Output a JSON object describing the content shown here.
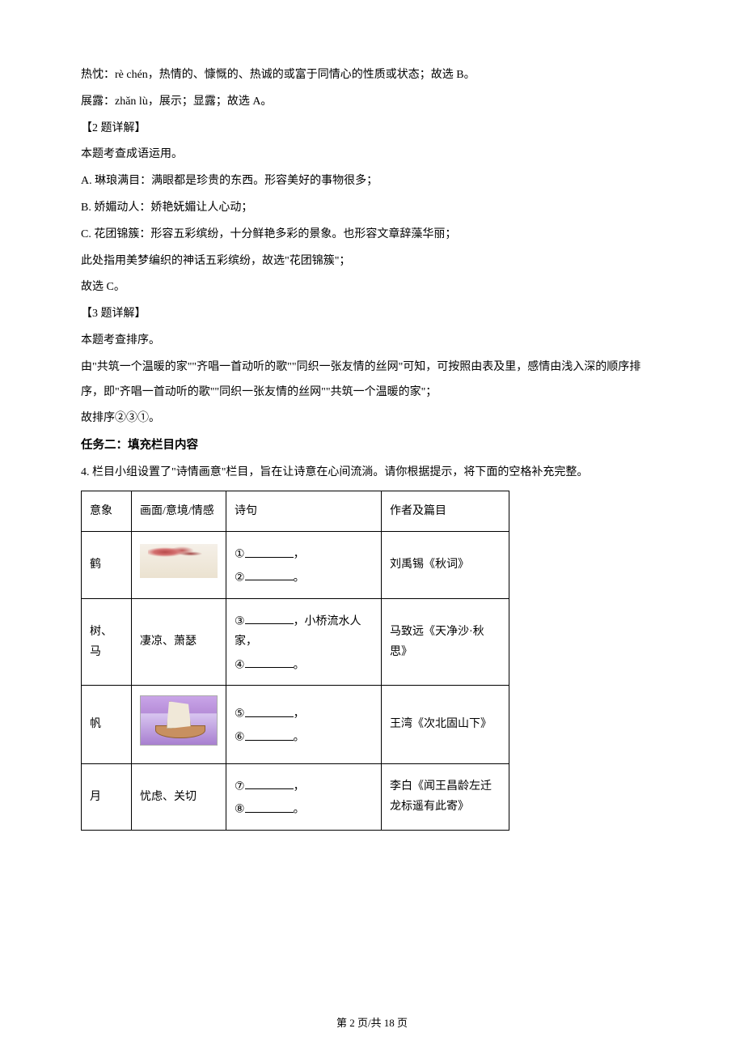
{
  "body": {
    "lines": [
      "热忱：rè chén，热情的、慷慨的、热诚的或富于同情心的性质或状态；故选 B。",
      "展露：zhǎn lù，展示；显露；故选 A。",
      "【2 题详解】",
      "本题考查成语运用。",
      "A. 琳琅满目：满眼都是珍贵的东西。形容美好的事物很多；",
      "B. 娇媚动人：娇艳妩媚让人心动；",
      "C. 花团锦簇：形容五彩缤纷，十分鲜艳多彩的景象。也形容文章辞藻华丽；",
      "此处指用美梦编织的神话五彩缤纷，故选\"花团锦簇\"；",
      "故选 C。",
      "【3 题详解】",
      "本题考查排序。",
      "由\"共筑一个温暖的家\"\"齐唱一首动听的歌\"\"同织一张友情的丝网\"可知，可按照由表及里，感情由浅入深的顺序排序，即\"齐唱一首动听的歌\"\"同织一张友情的丝网\"\"共筑一个温暖的家\"；",
      "故排序②③①。"
    ],
    "task_heading": "任务二：填充栏目内容",
    "q4": "4. 栏目小组设置了\"诗情画意\"栏目，旨在让诗意在心间流淌。请你根据提示，将下面的空格补充完整。"
  },
  "table": {
    "header": {
      "c1": "意象",
      "c2": "画面/意境/情感",
      "c3": "诗句",
      "c4": "作者及篇目"
    },
    "rows": [
      {
        "c1": "鹤",
        "c2_type": "image_crane",
        "c3_prefix1": "①",
        "c3_sep1": "，",
        "c3_prefix2": "②",
        "c3_sep2": "。",
        "c4": "刘禹锡《秋词》"
      },
      {
        "c1": "树、马",
        "c2": "凄凉、萧瑟",
        "c3_prefix1": "③",
        "c3_mid": "，小桥流水人家，",
        "c3_prefix2": "④",
        "c3_sep2": "。",
        "c4": "马致远《天净沙·秋思》"
      },
      {
        "c1": "帆",
        "c2_type": "image_boat",
        "c3_prefix1": "⑤",
        "c3_sep1": "，",
        "c3_prefix2": "⑥",
        "c3_sep2": "。",
        "c4": "王湾《次北固山下》"
      },
      {
        "c1": "月",
        "c2": "忧虑、关切",
        "c3_prefix1": "⑦",
        "c3_sep1": "，",
        "c3_prefix2": "⑧",
        "c3_sep2": "。",
        "c4": "李白《闻王昌龄左迁龙标遥有此寄》"
      }
    ]
  },
  "footer": "第 2 页/共 18 页"
}
